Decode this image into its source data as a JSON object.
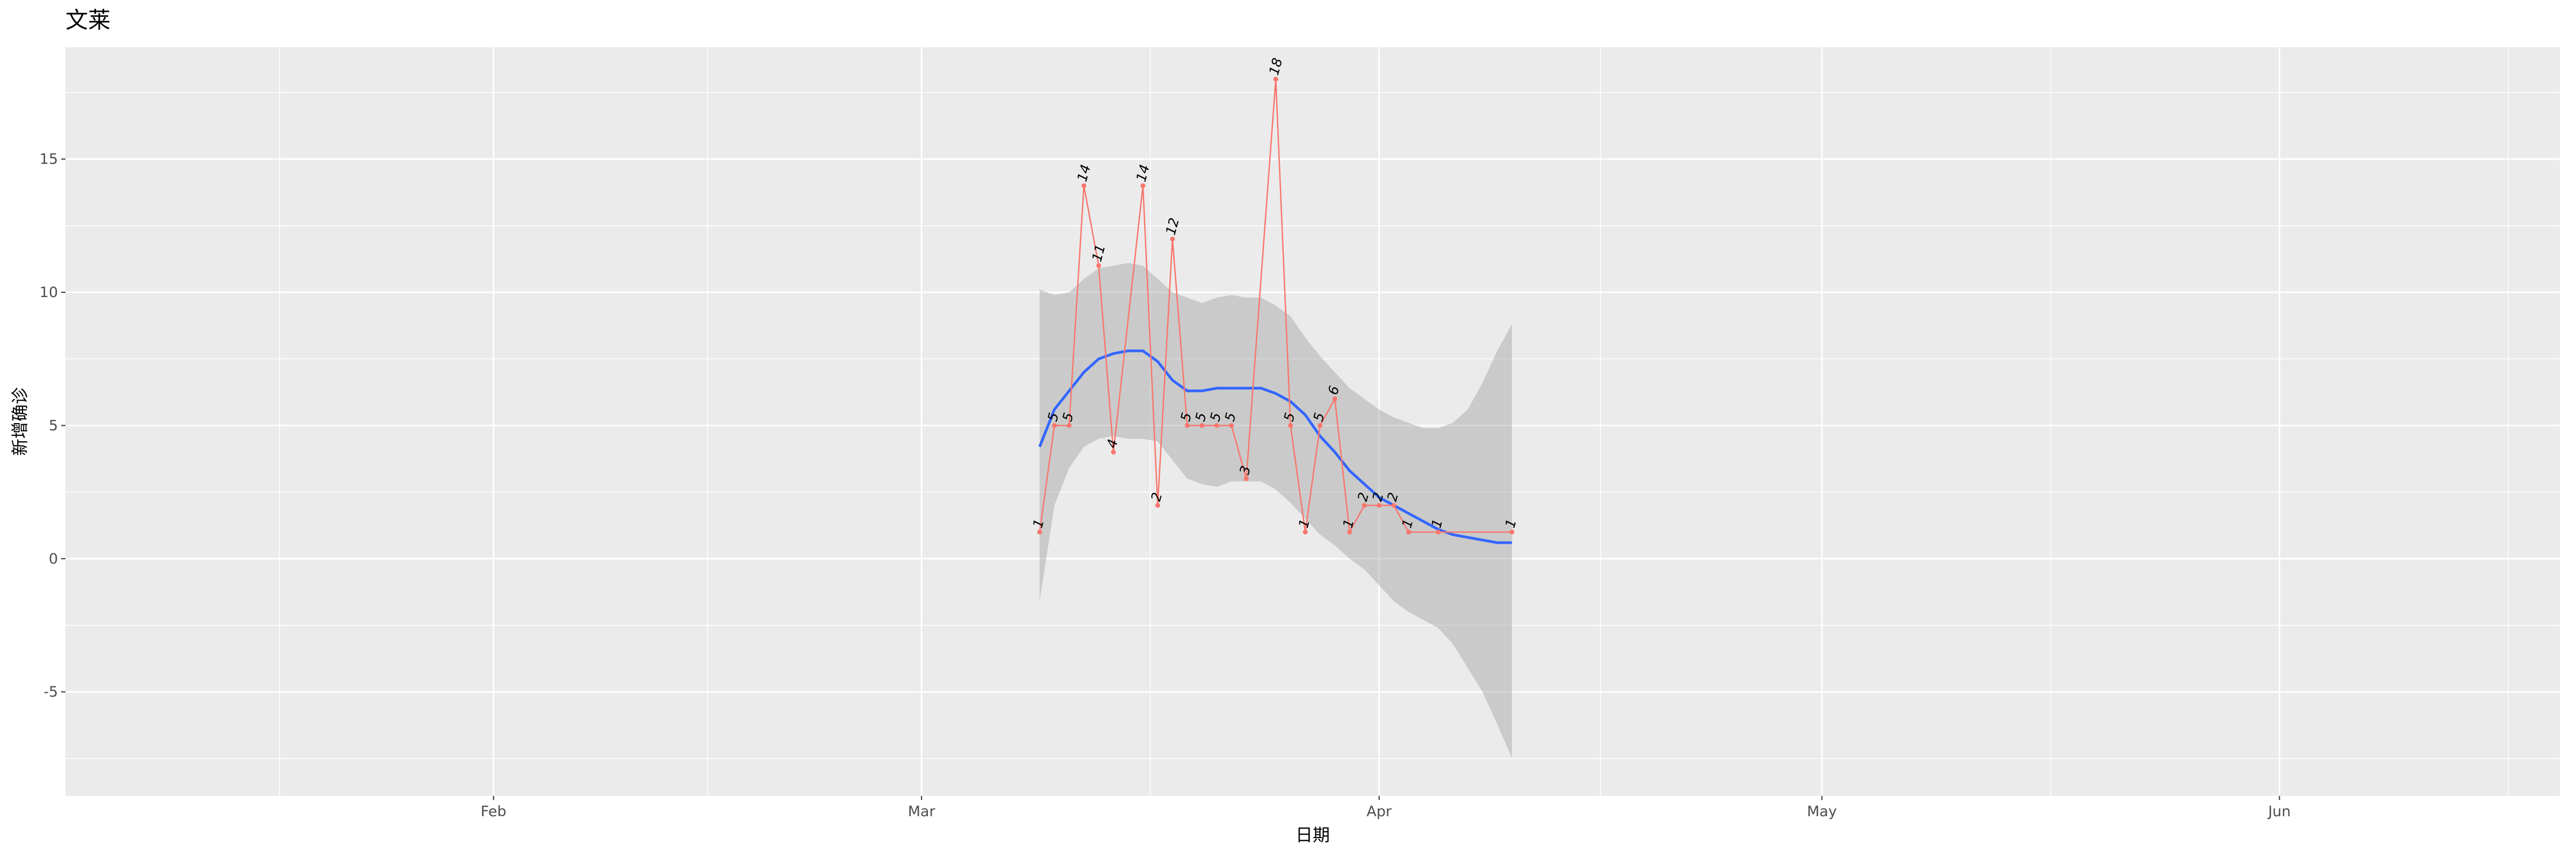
{
  "chart_data": {
    "type": "line",
    "title": "文莱",
    "xlabel": "日期",
    "ylabel": "新增确诊",
    "x_tick_labels": [
      "Feb",
      "Mar",
      "Apr",
      "May",
      "Jun"
    ],
    "x_ticks": [
      "2020-02-01",
      "2020-03-01",
      "2020-04-01",
      "2020-05-01",
      "2020-06-01"
    ],
    "xlim": [
      "2020-01-03",
      "2020-06-20"
    ],
    "y_ticks": [
      -5,
      0,
      5,
      10,
      15
    ],
    "ylim": [
      -8.9,
      19.2
    ],
    "grid": true,
    "legend": "none",
    "series": [
      {
        "type": "line-points-labels",
        "color": "#F8766D",
        "points": [
          {
            "x": "2020-03-09",
            "y": 1
          },
          {
            "x": "2020-03-10",
            "y": 5
          },
          {
            "x": "2020-03-11",
            "y": 5
          },
          {
            "x": "2020-03-12",
            "y": 14
          },
          {
            "x": "2020-03-13",
            "y": 11
          },
          {
            "x": "2020-03-14",
            "y": 4
          },
          {
            "x": "2020-03-16",
            "y": 14
          },
          {
            "x": "2020-03-17",
            "y": 2
          },
          {
            "x": "2020-03-18",
            "y": 12
          },
          {
            "x": "2020-03-19",
            "y": 5
          },
          {
            "x": "2020-03-20",
            "y": 5
          },
          {
            "x": "2020-03-21",
            "y": 5
          },
          {
            "x": "2020-03-22",
            "y": 5
          },
          {
            "x": "2020-03-23",
            "y": 3
          },
          {
            "x": "2020-03-25",
            "y": 18
          },
          {
            "x": "2020-03-26",
            "y": 5
          },
          {
            "x": "2020-03-27",
            "y": 1
          },
          {
            "x": "2020-03-28",
            "y": 5
          },
          {
            "x": "2020-03-29",
            "y": 6
          },
          {
            "x": "2020-03-30",
            "y": 1
          },
          {
            "x": "2020-03-31",
            "y": 2
          },
          {
            "x": "2020-04-01",
            "y": 2
          },
          {
            "x": "2020-04-02",
            "y": 2
          },
          {
            "x": "2020-04-03",
            "y": 1
          },
          {
            "x": "2020-04-05",
            "y": 1
          },
          {
            "x": "2020-04-10",
            "y": 1
          }
        ]
      },
      {
        "type": "smooth",
        "color": "#3366FF",
        "band_color": "#999999",
        "points": [
          {
            "x": "2020-03-09",
            "y": 4.2,
            "lo": -1.6,
            "hi": 10.1
          },
          {
            "x": "2020-03-10",
            "y": 5.6,
            "lo": 2.0,
            "hi": 9.9
          },
          {
            "x": "2020-03-11",
            "y": 6.3,
            "lo": 3.4,
            "hi": 10.0
          },
          {
            "x": "2020-03-12",
            "y": 7.0,
            "lo": 4.2,
            "hi": 10.5
          },
          {
            "x": "2020-03-13",
            "y": 7.5,
            "lo": 4.5,
            "hi": 10.9
          },
          {
            "x": "2020-03-14",
            "y": 7.7,
            "lo": 4.6,
            "hi": 11.0
          },
          {
            "x": "2020-03-15",
            "y": 7.8,
            "lo": 4.5,
            "hi": 11.1
          },
          {
            "x": "2020-03-16",
            "y": 7.8,
            "lo": 4.5,
            "hi": 11.0
          },
          {
            "x": "2020-03-17",
            "y": 7.4,
            "lo": 4.4,
            "hi": 10.5
          },
          {
            "x": "2020-03-18",
            "y": 6.7,
            "lo": 3.7,
            "hi": 10.0
          },
          {
            "x": "2020-03-19",
            "y": 6.3,
            "lo": 3.0,
            "hi": 9.8
          },
          {
            "x": "2020-03-20",
            "y": 6.3,
            "lo": 2.8,
            "hi": 9.6
          },
          {
            "x": "2020-03-21",
            "y": 6.4,
            "lo": 2.7,
            "hi": 9.8
          },
          {
            "x": "2020-03-22",
            "y": 6.4,
            "lo": 2.9,
            "hi": 9.9
          },
          {
            "x": "2020-03-23",
            "y": 6.4,
            "lo": 2.9,
            "hi": 9.8
          },
          {
            "x": "2020-03-24",
            "y": 6.4,
            "lo": 2.9,
            "hi": 9.8
          },
          {
            "x": "2020-03-25",
            "y": 6.2,
            "lo": 2.6,
            "hi": 9.5
          },
          {
            "x": "2020-03-26",
            "y": 5.9,
            "lo": 2.1,
            "hi": 9.1
          },
          {
            "x": "2020-03-27",
            "y": 5.4,
            "lo": 1.5,
            "hi": 8.3
          },
          {
            "x": "2020-03-28",
            "y": 4.6,
            "lo": 0.9,
            "hi": 7.6
          },
          {
            "x": "2020-03-29",
            "y": 4.0,
            "lo": 0.5,
            "hi": 7.0
          },
          {
            "x": "2020-03-30",
            "y": 3.3,
            "lo": 0.0,
            "hi": 6.4
          },
          {
            "x": "2020-03-31",
            "y": 2.8,
            "lo": -0.4,
            "hi": 6.0
          },
          {
            "x": "2020-04-01",
            "y": 2.3,
            "lo": -1.0,
            "hi": 5.6
          },
          {
            "x": "2020-04-02",
            "y": 2.0,
            "lo": -1.6,
            "hi": 5.3
          },
          {
            "x": "2020-04-03",
            "y": 1.7,
            "lo": -2.0,
            "hi": 5.1
          },
          {
            "x": "2020-04-04",
            "y": 1.4,
            "lo": -2.3,
            "hi": 4.9
          },
          {
            "x": "2020-04-05",
            "y": 1.1,
            "lo": -2.6,
            "hi": 4.9
          },
          {
            "x": "2020-04-06",
            "y": 0.9,
            "lo": -3.2,
            "hi": 5.1
          },
          {
            "x": "2020-04-07",
            "y": 0.8,
            "lo": -4.1,
            "hi": 5.6
          },
          {
            "x": "2020-04-08",
            "y": 0.7,
            "lo": -5.0,
            "hi": 6.6
          },
          {
            "x": "2020-04-09",
            "y": 0.6,
            "lo": -6.2,
            "hi": 7.8
          },
          {
            "x": "2020-04-10",
            "y": 0.6,
            "lo": -7.5,
            "hi": 8.8
          }
        ]
      }
    ]
  }
}
